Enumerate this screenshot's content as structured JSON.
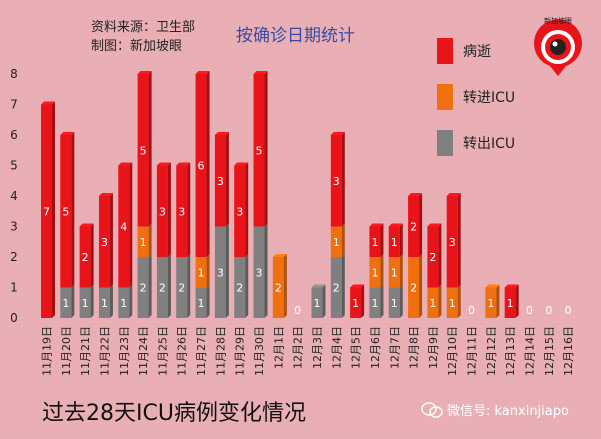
{
  "header": {
    "source": "资料来源：卫生部",
    "maker": "制图：新加坡眼",
    "title": "按确诊日期统计"
  },
  "logo": {
    "text": "新加坡眼"
  },
  "footer": {
    "headline": "过去28天ICU病例变化情况",
    "wechat": "微信号: kanxinjiapo"
  },
  "colors": {
    "deaths": "#e8141a",
    "into_icu": "#f07010",
    "out_icu": "#808080"
  },
  "chart_data": {
    "type": "bar",
    "stacked": true,
    "categories": [
      "11月19日",
      "11月20日",
      "11月21日",
      "11月22日",
      "11月23日",
      "11月24日",
      "11月25日",
      "11月26日",
      "11月27日",
      "11月28日",
      "11月29日",
      "11月30日",
      "12月1日",
      "12月2日",
      "12月3日",
      "12月4日",
      "12月5日",
      "12月6日",
      "12月7日",
      "12月8日",
      "12月9日",
      "12月10日",
      "12月11日",
      "12月12日",
      "12月13日",
      "12月14日",
      "12月15日",
      "12月16日"
    ],
    "series": [
      {
        "name": "转出ICU",
        "values": [
          0,
          1,
          1,
          1,
          1,
          2,
          2,
          2,
          1,
          3,
          2,
          3,
          0,
          0,
          1,
          2,
          0,
          1,
          1,
          0,
          0,
          0,
          0,
          0,
          0,
          0,
          0,
          0
        ]
      },
      {
        "name": "转进ICU",
        "values": [
          0,
          0,
          0,
          0,
          0,
          1,
          0,
          0,
          1,
          0,
          0,
          0,
          2,
          0,
          0,
          1,
          0,
          1,
          1,
          2,
          1,
          1,
          0,
          1,
          0,
          0,
          0,
          0
        ]
      },
      {
        "name": "病逝",
        "values": [
          7,
          5,
          2,
          3,
          4,
          5,
          3,
          3,
          6,
          3,
          3,
          5,
          0,
          0,
          0,
          3,
          1,
          1,
          1,
          2,
          2,
          3,
          0,
          0,
          1,
          0,
          0,
          0
        ]
      }
    ],
    "totals": [
      7,
      6,
      3,
      4,
      5,
      8,
      5,
      5,
      8,
      6,
      5,
      8,
      2,
      0,
      1,
      6,
      1,
      3,
      3,
      4,
      3,
      4,
      0,
      1,
      1,
      0,
      0,
      0
    ],
    "y_ticks": [
      "0",
      "1",
      "2",
      "3",
      "4",
      "5",
      "6",
      "7",
      "8"
    ],
    "ylim": [
      0,
      8
    ],
    "legend": [
      "病逝",
      "转进ICU",
      "转出ICU"
    ],
    "legend_position": "right",
    "grid": false
  }
}
